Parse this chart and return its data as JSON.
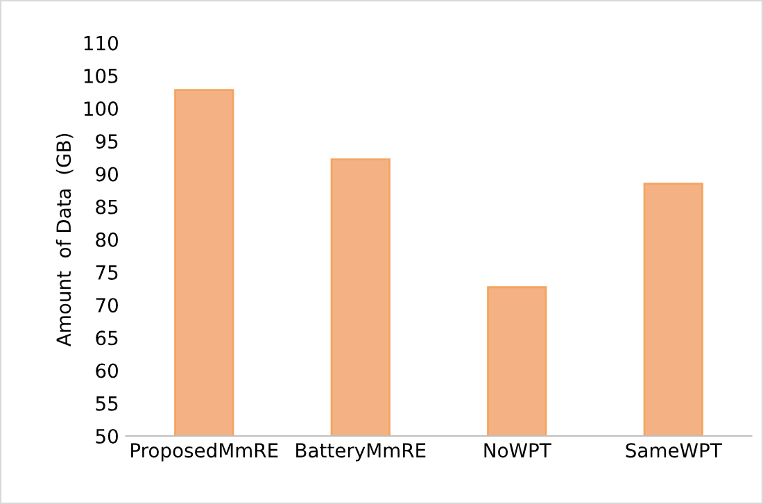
{
  "chart_data": {
    "type": "bar",
    "ylabel": "Amount  of Data  (GB)",
    "categories": [
      "ProposedMmRE",
      "BatteryMmRE",
      "NoWPT",
      "SameWPT"
    ],
    "values": [
      102.8,
      92.2,
      72.7,
      88.5
    ],
    "color": "#f4b183",
    "ylim": [
      50,
      110
    ],
    "yticks": [
      50,
      55,
      60,
      65,
      70,
      75,
      80,
      85,
      90,
      95,
      100,
      105,
      110
    ],
    "grid": false,
    "legend": false
  }
}
